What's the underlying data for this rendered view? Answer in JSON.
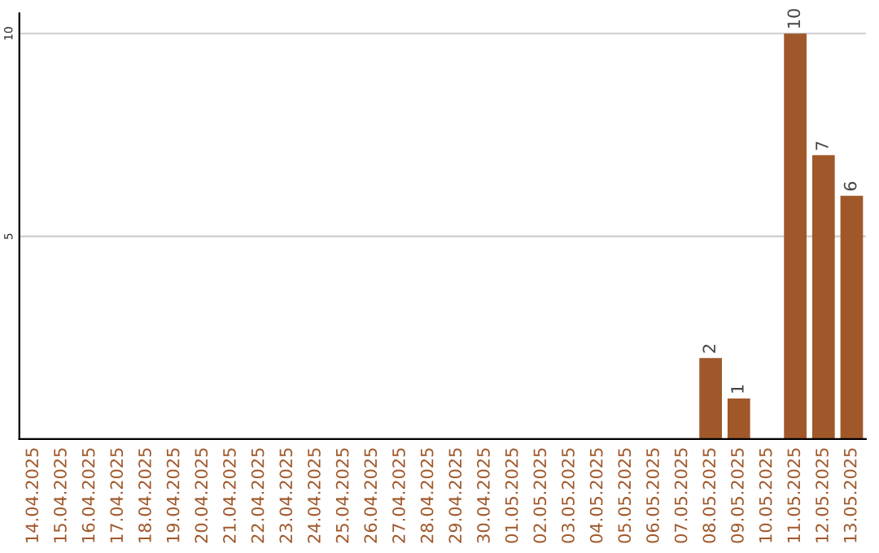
{
  "chart_data": {
    "type": "bar",
    "categories": [
      "14.04.2025",
      "15.04.2025",
      "16.04.2025",
      "17.04.2025",
      "18.04.2025",
      "19.04.2025",
      "20.04.2025",
      "21.04.2025",
      "22.04.2025",
      "23.04.2025",
      "24.04.2025",
      "25.04.2025",
      "26.04.2025",
      "27.04.2025",
      "28.04.2025",
      "29.04.2025",
      "30.04.2025",
      "01.05.2025",
      "02.05.2025",
      "03.05.2025",
      "04.05.2025",
      "05.05.2025",
      "06.05.2025",
      "07.05.2025",
      "08.05.2025",
      "09.05.2025",
      "10.05.2025",
      "11.05.2025",
      "12.05.2025",
      "13.05.2025"
    ],
    "values": [
      0,
      0,
      0,
      0,
      0,
      0,
      0,
      0,
      0,
      0,
      0,
      0,
      0,
      0,
      0,
      0,
      0,
      0,
      0,
      0,
      0,
      0,
      0,
      0,
      2,
      1,
      0,
      10,
      7,
      6
    ],
    "value_labels": [
      null,
      null,
      null,
      null,
      null,
      null,
      null,
      null,
      null,
      null,
      null,
      null,
      null,
      null,
      null,
      null,
      null,
      null,
      null,
      null,
      null,
      null,
      null,
      null,
      "2",
      "1",
      null,
      "10",
      "7",
      "6"
    ],
    "color": "#a0582a",
    "ylim": [
      0,
      10.5
    ],
    "yticks": [
      {
        "value": 0,
        "label": null
      },
      5,
      10
    ],
    "grid": "y",
    "legend": false
  }
}
